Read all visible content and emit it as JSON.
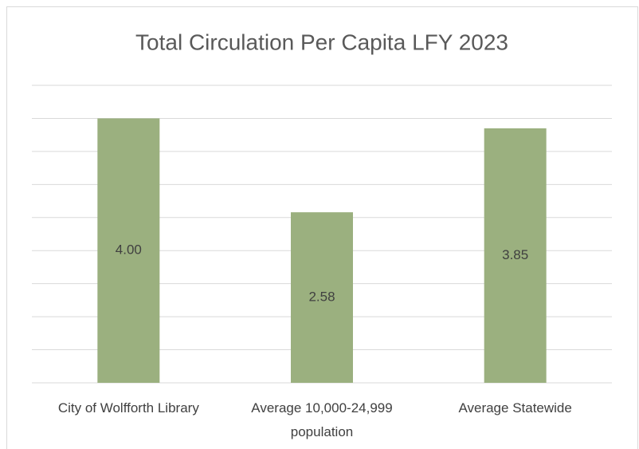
{
  "chart_data": {
    "type": "bar",
    "title": "Total Circulation Per Capita LFY 2023",
    "categories": [
      "City of Wolfforth Library",
      "Average 10,000-24,999 population",
      "Average Statewide"
    ],
    "values": [
      4,
      2.58,
      3.85
    ],
    "value_labels": [
      "4.00",
      "2.58",
      "3.85"
    ],
    "color": "#9bb07f",
    "ylim": [
      0,
      4.5
    ],
    "yticks": [
      0,
      0.5,
      1,
      1.5,
      2,
      2.5,
      3,
      3.5,
      4,
      4.5
    ],
    "grid": true
  }
}
